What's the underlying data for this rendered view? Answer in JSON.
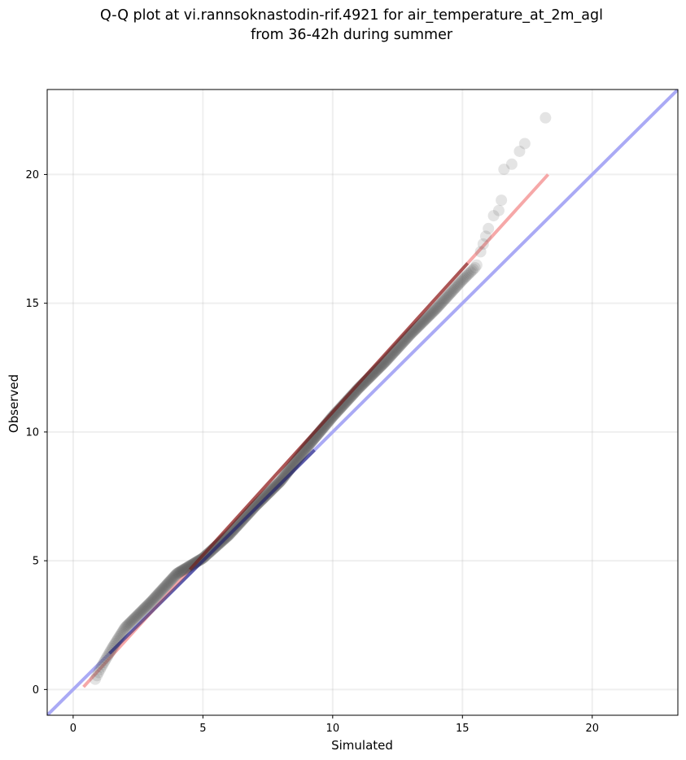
{
  "chart_data": {
    "type": "scatter",
    "title_line1": "Q-Q plot at vi.rannsoknastodin-rif.4921 for air_temperature_at_2m_agl",
    "title_line2": "from 36-42h during summer",
    "xlabel": "Simulated",
    "ylabel": "Observed",
    "xlim": [
      -1.0,
      23.3
    ],
    "ylim": [
      -1.0,
      23.3
    ],
    "xticks": [
      0,
      5,
      10,
      15,
      20
    ],
    "yticks": [
      0,
      5,
      10,
      15,
      20
    ],
    "grid": true,
    "colors": {
      "points": "#555555",
      "identity_line": "#aaaaf5",
      "fit_line": "#f5a3a3",
      "overlap_identity": "#1a1a6e",
      "overlap_fit": "#6e1010"
    },
    "identity_line": {
      "x": [
        -1.0,
        23.3
      ],
      "y": [
        -1.0,
        23.3
      ]
    },
    "fit_line": {
      "x": [
        0.4,
        18.3
      ],
      "y": [
        0.1,
        20.0
      ]
    },
    "quantile_knots": {
      "x": [
        0.8,
        1.1,
        1.5,
        2.0,
        3.0,
        4.0,
        5.0,
        6.0,
        7.0,
        8.0,
        9.0,
        10.0,
        11.0,
        12.0,
        13.0,
        14.0,
        15.0,
        15.5,
        16.0,
        16.5,
        17.0,
        17.5,
        18.0
      ],
      "y": [
        0.3,
        0.9,
        1.6,
        2.4,
        3.4,
        4.5,
        5.1,
        6.0,
        7.1,
        8.1,
        9.4,
        10.6,
        11.7,
        12.7,
        13.8,
        14.8,
        15.9,
        16.4,
        17.2,
        18.4,
        19.5,
        20.8,
        22.0
      ]
    },
    "tail_points": [
      {
        "x": 15.7,
        "y": 17.0
      },
      {
        "x": 15.8,
        "y": 17.3
      },
      {
        "x": 15.9,
        "y": 17.6
      },
      {
        "x": 16.0,
        "y": 17.9
      },
      {
        "x": 16.2,
        "y": 18.4
      },
      {
        "x": 16.4,
        "y": 18.6
      },
      {
        "x": 16.5,
        "y": 19.0
      },
      {
        "x": 16.6,
        "y": 20.2
      },
      {
        "x": 16.9,
        "y": 20.4
      },
      {
        "x": 17.2,
        "y": 20.9
      },
      {
        "x": 17.4,
        "y": 21.2
      },
      {
        "x": 18.2,
        "y": 22.2
      }
    ],
    "n_points": 520
  }
}
